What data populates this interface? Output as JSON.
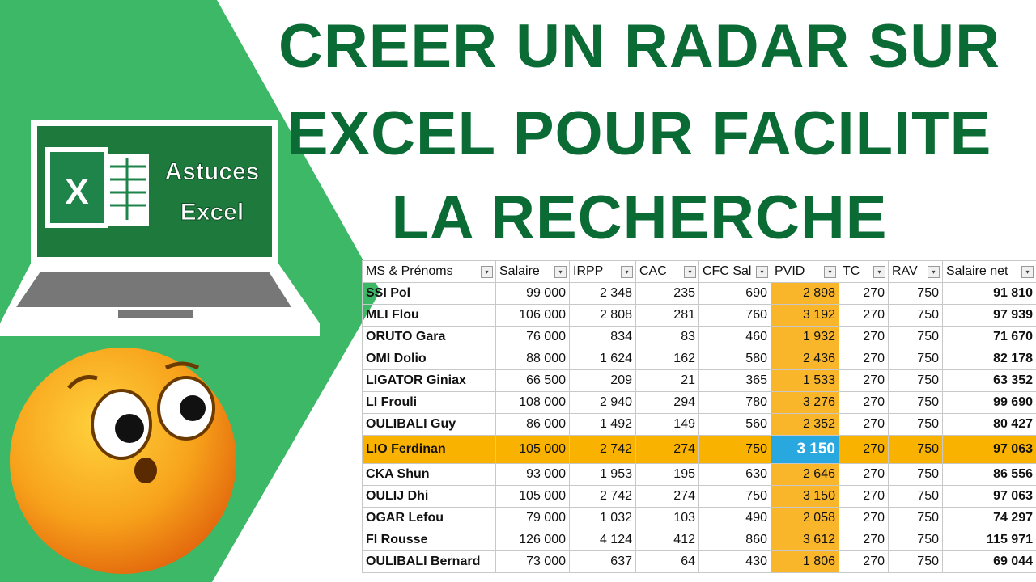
{
  "title": {
    "lines": [
      "CREER UN RADAR SUR",
      "EXCEL POUR FACILITE",
      "LA RECHERCHE"
    ]
  },
  "logo": {
    "icon": "X",
    "line1": "Astuces",
    "line2": "Excel"
  },
  "table": {
    "headers": [
      "MS & Prénoms",
      "Salaire",
      "IRPP",
      "CAC",
      "CFC  Sal",
      "PVID",
      "TC",
      "RAV",
      "Salaire net"
    ],
    "rows": [
      [
        "SSI Pol",
        "99 000",
        "2 348",
        "235",
        "690",
        "2 898",
        "270",
        "750",
        "91 810"
      ],
      [
        "MLI Flou",
        "106 000",
        "2 808",
        "281",
        "760",
        "3 192",
        "270",
        "750",
        "97 939"
      ],
      [
        "ORUTO Gara",
        "76 000",
        "834",
        "83",
        "460",
        "1 932",
        "270",
        "750",
        "71 670"
      ],
      [
        "OMI Dolio",
        "88 000",
        "1 624",
        "162",
        "580",
        "2 436",
        "270",
        "750",
        "82 178"
      ],
      [
        "LIGATOR Giniax",
        "66 500",
        "209",
        "21",
        "365",
        "1 533",
        "270",
        "750",
        "63 352"
      ],
      [
        "LI Frouli",
        "108 000",
        "2 940",
        "294",
        "780",
        "3 276",
        "270",
        "750",
        "99 690"
      ],
      [
        "OULIBALI Guy",
        "86 000",
        "1 492",
        "149",
        "560",
        "2 352",
        "270",
        "750",
        "80 427"
      ],
      [
        "LIO Ferdinan",
        "105 000",
        "2 742",
        "274",
        "750",
        "3 150",
        "270",
        "750",
        "97 063"
      ],
      [
        "CKA Shun",
        "93 000",
        "1 953",
        "195",
        "630",
        "2 646",
        "270",
        "750",
        "86 556"
      ],
      [
        "OULIJ Dhi",
        "105 000",
        "2 742",
        "274",
        "750",
        "3 150",
        "270",
        "750",
        "97 063"
      ],
      [
        "OGAR Lefou",
        "79 000",
        "1 032",
        "103",
        "490",
        "2 058",
        "270",
        "750",
        "74 297"
      ],
      [
        "FI Rousse",
        "126 000",
        "4 124",
        "412",
        "860",
        "3 612",
        "270",
        "750",
        "115 971"
      ],
      [
        "OULIBALI Bernard",
        "73 000",
        "637",
        "64",
        "430",
        "1 806",
        "270",
        "750",
        "69 044"
      ]
    ]
  }
}
